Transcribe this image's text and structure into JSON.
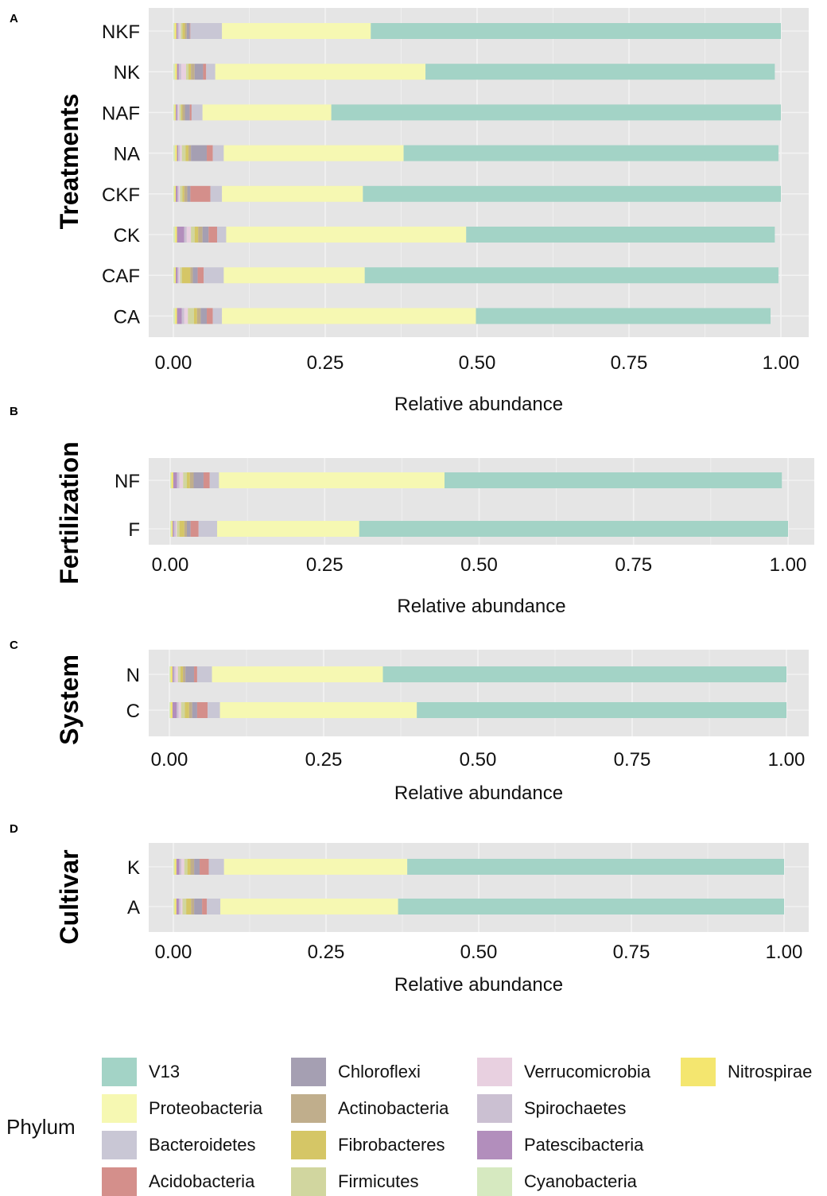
{
  "colors": {
    "V13": "#a3d3c6",
    "Proteobacteria": "#f6f8b2",
    "Bacteroidetes": "#c9c7d5",
    "Acidobacteria": "#d48f8b",
    "Chloroflexi": "#a59fb2",
    "Actinobacteria": "#c0ae8c",
    "Fibrobacteres": "#d5c666",
    "Firmicutes": "#d1d69f",
    "Verrucomicrobia": "#e8d0e0",
    "Spirochaetes": "#cbc0d2",
    "Patescibacteria": "#b28ebc",
    "Cyanobacteria": "#d6e9c0",
    "Nitrospirae": "#f4e66f",
    "panel_bg": "#e5e5e5",
    "grid": "#f2f2f2"
  },
  "legend": {
    "title": "Phylum",
    "items": [
      "V13",
      "Proteobacteria",
      "Bacteroidetes",
      "Acidobacteria",
      "Chloroflexi",
      "Actinobacteria",
      "Fibrobacteres",
      "Firmicutes",
      "Verrucomicrobia",
      "Spirochaetes",
      "Patescibacteria",
      "Cyanobacteria",
      "Nitrospirae"
    ]
  },
  "chart_data": [
    {
      "type": "bar",
      "panel": "A",
      "orientation": "horizontal",
      "stacked": true,
      "ylabel": "Treatments",
      "xlabel": "Relative abundance",
      "xlim": [
        0,
        1
      ],
      "xticks": [
        "0.00",
        "0.25",
        "0.50",
        "0.75",
        "1.00"
      ],
      "categories": [
        "NKF",
        "NK",
        "NAF",
        "NA",
        "CKF",
        "CK",
        "CAF",
        "CA"
      ],
      "series": [
        {
          "name": "Cyanobacteria",
          "values": [
            0.002,
            0.003,
            0.002,
            0.003,
            0.002,
            0.003,
            0.002,
            0.003
          ]
        },
        {
          "name": "Nitrospirae",
          "values": [
            0.003,
            0.003,
            0.002,
            0.003,
            0.002,
            0.003,
            0.002,
            0.003
          ]
        },
        {
          "name": "Patescibacteria",
          "values": [
            0.002,
            0.003,
            0.002,
            0.002,
            0.003,
            0.012,
            0.003,
            0.008
          ]
        },
        {
          "name": "Spirochaetes",
          "values": [
            0.003,
            0.004,
            0.002,
            0.003,
            0.002,
            0.004,
            0.002,
            0.004
          ]
        },
        {
          "name": "Verrucomicrobia",
          "values": [
            0.002,
            0.008,
            0.002,
            0.003,
            0.002,
            0.007,
            0.002,
            0.006
          ]
        },
        {
          "name": "Firmicutes",
          "values": [
            0.003,
            0.004,
            0.003,
            0.006,
            0.004,
            0.006,
            0.003,
            0.01
          ]
        },
        {
          "name": "Fibrobacteres",
          "values": [
            0.004,
            0.004,
            0.002,
            0.005,
            0.003,
            0.006,
            0.014,
            0.005
          ]
        },
        {
          "name": "Actinobacteria",
          "values": [
            0.003,
            0.006,
            0.004,
            0.004,
            0.005,
            0.007,
            0.004,
            0.006
          ]
        },
        {
          "name": "Chloroflexi",
          "values": [
            0.005,
            0.014,
            0.008,
            0.026,
            0.005,
            0.01,
            0.008,
            0.01
          ]
        },
        {
          "name": "Acidobacteria",
          "values": [
            0.001,
            0.005,
            0.003,
            0.01,
            0.033,
            0.014,
            0.01,
            0.01
          ]
        },
        {
          "name": "Bacteroidetes",
          "values": [
            0.052,
            0.015,
            0.018,
            0.018,
            0.019,
            0.015,
            0.033,
            0.015
          ]
        },
        {
          "name": "Proteobacteria",
          "values": [
            0.245,
            0.346,
            0.212,
            0.296,
            0.232,
            0.395,
            0.232,
            0.418
          ]
        },
        {
          "name": "V13",
          "values": [
            0.675,
            0.575,
            0.74,
            0.617,
            0.688,
            0.508,
            0.681,
            0.485
          ]
        }
      ]
    },
    {
      "type": "bar",
      "panel": "B",
      "orientation": "horizontal",
      "stacked": true,
      "ylabel": "Fertilization",
      "xlabel": "Relative abundance",
      "xlim": [
        0,
        1
      ],
      "xticks": [
        "0.00",
        "0.25",
        "0.50",
        "0.75",
        "1.00"
      ],
      "categories": [
        "NF",
        "F"
      ],
      "series": [
        {
          "name": "Cyanobacteria",
          "values": [
            0.002,
            0.002
          ]
        },
        {
          "name": "Nitrospirae",
          "values": [
            0.003,
            0.002
          ]
        },
        {
          "name": "Patescibacteria",
          "values": [
            0.006,
            0.002
          ]
        },
        {
          "name": "Spirochaetes",
          "values": [
            0.004,
            0.003
          ]
        },
        {
          "name": "Verrucomicrobia",
          "values": [
            0.006,
            0.002
          ]
        },
        {
          "name": "Firmicutes",
          "values": [
            0.006,
            0.004
          ]
        },
        {
          "name": "Fibrobacteres",
          "values": [
            0.005,
            0.008
          ]
        },
        {
          "name": "Actinobacteria",
          "values": [
            0.006,
            0.004
          ]
        },
        {
          "name": "Chloroflexi",
          "values": [
            0.016,
            0.006
          ]
        },
        {
          "name": "Acidobacteria",
          "values": [
            0.01,
            0.013
          ]
        },
        {
          "name": "Bacteroidetes",
          "values": [
            0.015,
            0.03
          ]
        },
        {
          "name": "Proteobacteria",
          "values": [
            0.365,
            0.23
          ]
        },
        {
          "name": "V13",
          "values": [
            0.546,
            0.694
          ]
        }
      ]
    },
    {
      "type": "bar",
      "panel": "C",
      "orientation": "horizontal",
      "stacked": true,
      "ylabel": "System",
      "xlabel": "Relative abundance",
      "xlim": [
        0,
        1
      ],
      "xticks": [
        "0.00",
        "0.25",
        "0.50",
        "0.75",
        "1.00"
      ],
      "categories": [
        "N",
        "C"
      ],
      "series": [
        {
          "name": "Cyanobacteria",
          "values": [
            0.002,
            0.002
          ]
        },
        {
          "name": "Nitrospirae",
          "values": [
            0.003,
            0.003
          ]
        },
        {
          "name": "Patescibacteria",
          "values": [
            0.002,
            0.007
          ]
        },
        {
          "name": "Spirochaetes",
          "values": [
            0.003,
            0.003
          ]
        },
        {
          "name": "Verrucomicrobia",
          "values": [
            0.004,
            0.004
          ]
        },
        {
          "name": "Firmicutes",
          "values": [
            0.004,
            0.006
          ]
        },
        {
          "name": "Fibrobacteres",
          "values": [
            0.004,
            0.007
          ]
        },
        {
          "name": "Actinobacteria",
          "values": [
            0.004,
            0.005
          ]
        },
        {
          "name": "Chloroflexi",
          "values": [
            0.014,
            0.008
          ]
        },
        {
          "name": "Acidobacteria",
          "values": [
            0.005,
            0.017
          ]
        },
        {
          "name": "Bacteroidetes",
          "values": [
            0.024,
            0.02
          ]
        },
        {
          "name": "Proteobacteria",
          "values": [
            0.277,
            0.319
          ]
        },
        {
          "name": "V13",
          "values": [
            0.654,
            0.599
          ]
        }
      ]
    },
    {
      "type": "bar",
      "panel": "D",
      "orientation": "horizontal",
      "stacked": true,
      "ylabel": "Cultivar",
      "xlabel": "Relative abundance",
      "xlim": [
        0,
        1
      ],
      "xticks": [
        "0.00",
        "0.25",
        "0.50",
        "0.75",
        "1.00"
      ],
      "categories": [
        "K",
        "A"
      ],
      "series": [
        {
          "name": "Cyanobacteria",
          "values": [
            0.002,
            0.002
          ]
        },
        {
          "name": "Nitrospirae",
          "values": [
            0.003,
            0.003
          ]
        },
        {
          "name": "Patescibacteria",
          "values": [
            0.005,
            0.004
          ]
        },
        {
          "name": "Spirochaetes",
          "values": [
            0.003,
            0.003
          ]
        },
        {
          "name": "Verrucomicrobia",
          "values": [
            0.005,
            0.003
          ]
        },
        {
          "name": "Firmicutes",
          "values": [
            0.005,
            0.006
          ]
        },
        {
          "name": "Fibrobacteres",
          "values": [
            0.005,
            0.008
          ]
        },
        {
          "name": "Actinobacteria",
          "values": [
            0.006,
            0.005
          ]
        },
        {
          "name": "Chloroflexi",
          "values": [
            0.009,
            0.013
          ]
        },
        {
          "name": "Acidobacteria",
          "values": [
            0.015,
            0.008
          ]
        },
        {
          "name": "Bacteroidetes",
          "values": [
            0.025,
            0.022
          ]
        },
        {
          "name": "Proteobacteria",
          "values": [
            0.3,
            0.291
          ]
        },
        {
          "name": "V13",
          "values": [
            0.617,
            0.632
          ]
        }
      ]
    }
  ]
}
